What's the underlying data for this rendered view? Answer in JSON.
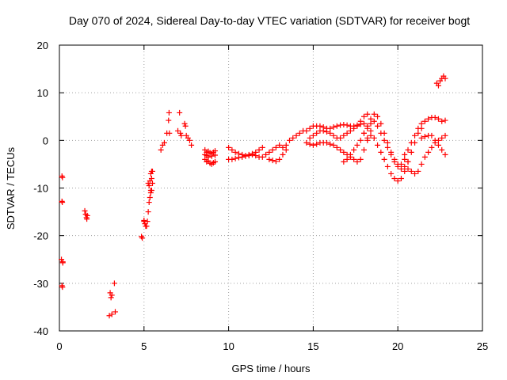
{
  "chart_data": {
    "type": "scatter",
    "title": "Day 070 of 2024, Sidereal Day-to-day VTEC variation (SDTVAR) for receiver bogt",
    "xlabel": "GPS time / hours",
    "ylabel": "SDTVAR / TECUs",
    "xlim": [
      0,
      25
    ],
    "ylim": [
      -40,
      20
    ],
    "xticks": [
      0,
      5,
      10,
      15,
      20,
      25
    ],
    "yticks": [
      -40,
      -30,
      -20,
      -10,
      0,
      10,
      20
    ],
    "grid": true,
    "marker": "+",
    "color": "#ff0000",
    "series": [
      {
        "name": "SDTVAR",
        "x": [
          0.15,
          0.17,
          0.2,
          0.15,
          0.18,
          0.12,
          0.15,
          0.18,
          0.2,
          1.5,
          1.55,
          1.6,
          1.62,
          1.65,
          3.0,
          3.05,
          3.1,
          2.95,
          3.1,
          3.25,
          3.3,
          4.85,
          4.9,
          5.0,
          5.0,
          5.05,
          5.1,
          5.15,
          5.2,
          5.25,
          5.3,
          5.35,
          5.4,
          5.45,
          5.5,
          5.4,
          5.45,
          5.5,
          5.3,
          5.35,
          5.4,
          5.45,
          5.25,
          6.0,
          6.1,
          6.2,
          6.35,
          6.45,
          6.48,
          6.5,
          7.0,
          7.1,
          7.15,
          7.2,
          7.4,
          7.45,
          7.5,
          7.6,
          7.7,
          7.8,
          8.6,
          8.7,
          8.8,
          8.9,
          9.0,
          9.1,
          9.2,
          8.6,
          8.7,
          8.8,
          8.9,
          9.0,
          9.1,
          9.2,
          8.6,
          8.7,
          8.8,
          9.0,
          9.2,
          10.0,
          10.2,
          10.4,
          10.6,
          10.8,
          11.0,
          11.2,
          11.4,
          11.6,
          11.8,
          12.0,
          10.0,
          10.2,
          10.4,
          10.6,
          10.8,
          11.0,
          11.2,
          11.4,
          11.6,
          11.8,
          12.0,
          12.2,
          12.4,
          12.6,
          12.8,
          13.0,
          12.4,
          12.6,
          12.8,
          13.0,
          13.2,
          13.4,
          13.2,
          13.4,
          13.6,
          13.8,
          14.0,
          14.2,
          14.4,
          14.6,
          14.8,
          15.0,
          15.2,
          15.4,
          15.6,
          15.8,
          16.0,
          16.2,
          16.4,
          16.6,
          16.8,
          17.0,
          17.2,
          17.4,
          17.6,
          17.8,
          18.0,
          14.8,
          15.0,
          15.2,
          15.4,
          15.6,
          15.8,
          16.0,
          16.2,
          16.4,
          16.6,
          16.8,
          17.0,
          17.2,
          17.4,
          17.6,
          17.8,
          18.0,
          18.2,
          14.6,
          14.8,
          15.0,
          15.2,
          15.4,
          15.6,
          15.8,
          16.0,
          16.2,
          16.4,
          16.6,
          16.8,
          17.0,
          17.2,
          17.4,
          17.6,
          17.8,
          18.0,
          18.2,
          18.4,
          16.8,
          17.0,
          17.2,
          17.4,
          17.6,
          17.8,
          18.0,
          18.2,
          18.4,
          18.6,
          18.8,
          19.0,
          19.2,
          19.4,
          19.6,
          19.8,
          20.0,
          20.2,
          20.4,
          18.0,
          18.2,
          18.4,
          18.6,
          18.8,
          19.0,
          19.2,
          19.4,
          19.6,
          19.8,
          20.0,
          20.2,
          20.4,
          20.6,
          18.2,
          18.4,
          18.6,
          18.8,
          19.0,
          19.2,
          19.4,
          19.6,
          19.8,
          20.0,
          20.2,
          20.4,
          20.6,
          20.8,
          21.0,
          21.2,
          21.4,
          20.4,
          20.6,
          20.8,
          21.0,
          21.2,
          21.4,
          21.6,
          21.8,
          22.0,
          22.2,
          22.4,
          22.6,
          22.8,
          20.6,
          20.8,
          21.0,
          21.2,
          21.4,
          21.6,
          21.8,
          22.0,
          22.2,
          22.4,
          22.6,
          22.8,
          21.4,
          21.6,
          21.8,
          22.0,
          22.2,
          22.4,
          22.6,
          22.8,
          22.3,
          22.4,
          22.5,
          22.6,
          22.7,
          22.8
        ],
        "y": [
          -7.5,
          -13.0,
          -25.5,
          -30.5,
          -30.8,
          -25.0,
          -12.8,
          -7.8,
          -25.7,
          -14.8,
          -15.5,
          -16.2,
          -16.5,
          -15.8,
          -32.0,
          -33.0,
          -36.5,
          -36.8,
          -32.5,
          -30.0,
          -36.0,
          -20.2,
          -20.5,
          -17.0,
          -16.8,
          -17.5,
          -18.0,
          -18.0,
          -17.0,
          -15.0,
          -13.0,
          -12.0,
          -11.0,
          -10.5,
          -9.0,
          -10.5,
          -8.0,
          -6.5,
          -9.5,
          -8.5,
          -7.0,
          -6.5,
          -9.0,
          -2.0,
          -1.0,
          -0.5,
          1.5,
          4.2,
          5.8,
          1.5,
          2.0,
          5.8,
          1.5,
          1.0,
          3.5,
          3.0,
          1.0,
          0.5,
          0.0,
          -1.0,
          -2.0,
          -2.5,
          -2.3,
          -2.6,
          -2.8,
          -2.5,
          -2.2,
          -4.0,
          -4.5,
          -4.3,
          -4.8,
          -5.0,
          -4.7,
          -4.5,
          -3.0,
          -3.2,
          -3.5,
          -3.3,
          -3.1,
          -1.5,
          -2.0,
          -2.5,
          -2.8,
          -3.0,
          -3.2,
          -3.0,
          -2.8,
          -2.5,
          -2.0,
          -1.5,
          -4.0,
          -4.0,
          -3.8,
          -3.6,
          -3.5,
          -3.3,
          -3.2,
          -3.0,
          -3.2,
          -3.5,
          -3.5,
          -3.0,
          -2.5,
          -2.0,
          -1.5,
          -1.0,
          -4.0,
          -4.2,
          -4.4,
          -4.0,
          -3.0,
          -2.0,
          -1.5,
          -1.0,
          0.0,
          0.5,
          1.0,
          1.5,
          2.0,
          2.0,
          2.5,
          3.0,
          3.0,
          3.0,
          2.8,
          2.5,
          2.5,
          2.8,
          3.0,
          3.2,
          3.3,
          3.2,
          3.0,
          3.0,
          3.2,
          3.4,
          3.5,
          0.5,
          1.0,
          1.5,
          2.0,
          2.0,
          1.8,
          1.5,
          1.0,
          0.5,
          0.5,
          1.0,
          1.5,
          2.0,
          2.5,
          3.0,
          4.0,
          5.0,
          5.5,
          -0.5,
          -0.8,
          -1.0,
          -0.8,
          -0.5,
          -0.5,
          -0.5,
          -0.8,
          -1.0,
          -1.5,
          -2.0,
          -2.5,
          -3.0,
          -3.5,
          -4.0,
          -4.5,
          -4.0,
          -2.0,
          0.0,
          2.0,
          -4.5,
          -4.0,
          -3.0,
          -2.0,
          -1.0,
          0.0,
          1.5,
          3.0,
          4.5,
          5.5,
          5.0,
          3.5,
          1.5,
          -0.5,
          -2.5,
          -4.0,
          -5.0,
          -5.0,
          -4.0,
          1.5,
          2.5,
          3.5,
          4.0,
          3.0,
          1.5,
          0.0,
          -1.5,
          -3.0,
          -4.5,
          -5.5,
          -6.0,
          -5.5,
          -4.5,
          0.5,
          1.0,
          0.5,
          -1.0,
          -2.5,
          -4.0,
          -5.5,
          -7.0,
          -8.0,
          -8.5,
          -8.0,
          -6.5,
          -4.5,
          -2.5,
          -0.5,
          1.5,
          2.5,
          -3.0,
          -2.0,
          -0.5,
          1.0,
          2.5,
          3.5,
          4.0,
          4.5,
          4.8,
          4.8,
          4.5,
          4.0,
          4.2,
          -6.0,
          -6.5,
          -7.0,
          -6.5,
          -5.0,
          -3.5,
          -2.5,
          -1.5,
          -0.5,
          0.0,
          0.5,
          1.0,
          0.5,
          0.8,
          1.0,
          1.0,
          0.0,
          -1.0,
          -2.0,
          -3.0,
          12.0,
          11.5,
          12.5,
          13.0,
          13.5,
          13.0
        ]
      }
    ]
  }
}
